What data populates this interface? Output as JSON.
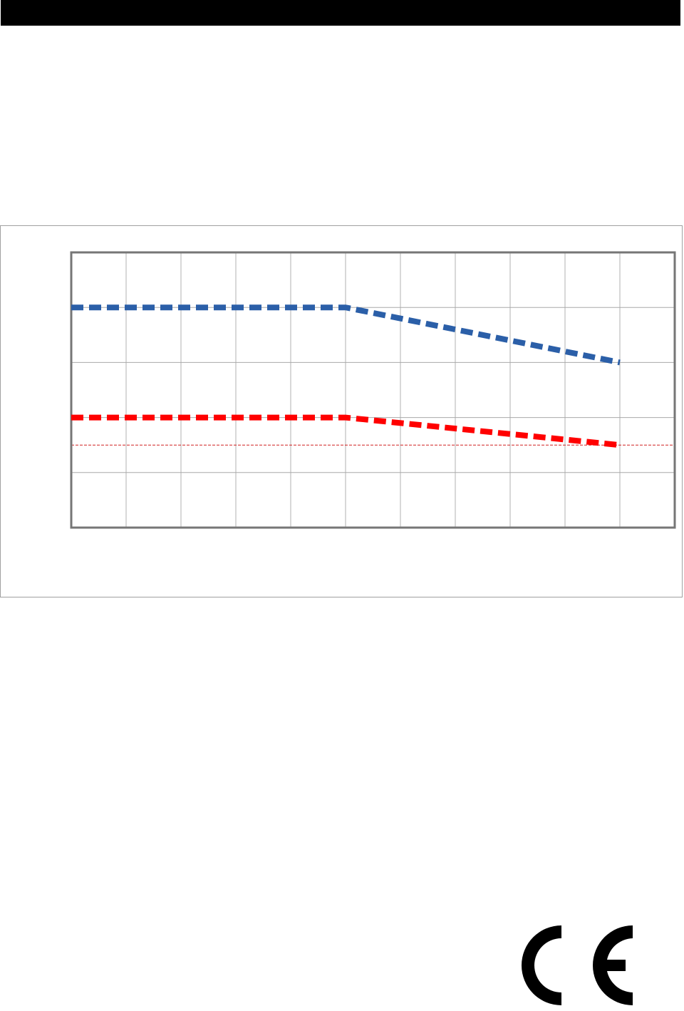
{
  "header_bar": {
    "color": "#000000"
  },
  "chart_data": {
    "type": "line",
    "title": "",
    "xlabel": "",
    "ylabel": "",
    "x": [
      0,
      5,
      10
    ],
    "xlim": [
      0,
      11
    ],
    "ylim": [
      0,
      5
    ],
    "grid": true,
    "tick_labels_shown": false,
    "series": [
      {
        "color": "#2b5fa8",
        "style": "dashed",
        "x": [
          0,
          5,
          10
        ],
        "values": [
          4,
          4,
          3
        ]
      },
      {
        "color": "#ff0000",
        "style": "dashed",
        "x": [
          0,
          5,
          10
        ],
        "values": [
          2,
          2,
          1.5
        ]
      }
    ],
    "reference_lines": [
      {
        "y": 1.5,
        "color": "#d02020",
        "style": "thin-dashed"
      }
    ]
  },
  "logo": {
    "text": "CE",
    "color": "#000000"
  }
}
